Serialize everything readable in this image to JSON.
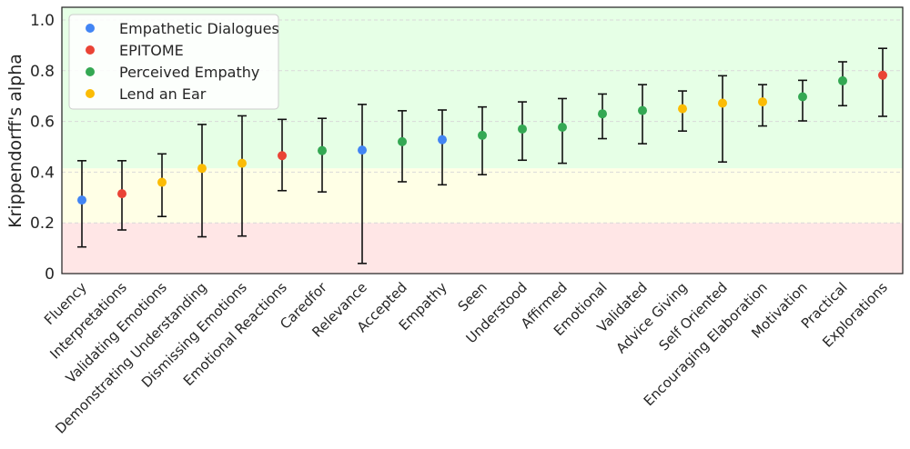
{
  "chart_data": {
    "type": "scatter",
    "title": "",
    "xlabel": "",
    "ylabel": "Krippendorff's alpha",
    "ylim": [
      0,
      1.05
    ],
    "yticks": [
      "0",
      "0.2",
      "0.4",
      "0.6",
      "0.8",
      "1.0"
    ],
    "ytick_values": [
      0,
      0.2,
      0.4,
      0.6,
      0.8,
      1.0
    ],
    "grid": true,
    "legend_position": "top-left",
    "bands": [
      {
        "from": 0.0,
        "to": 0.2,
        "color": "#ffe6e6"
      },
      {
        "from": 0.2,
        "to": 0.415,
        "color": "#ffffe6"
      },
      {
        "from": 0.415,
        "to": 1.05,
        "color": "#e6ffe6"
      }
    ],
    "datasets": [
      {
        "name": "Empathetic Dialogues",
        "color": "#4285f4"
      },
      {
        "name": "EPITOME",
        "color": "#ea4335"
      },
      {
        "name": "Perceived Empathy",
        "color": "#34a853"
      },
      {
        "name": "Lend an Ear",
        "color": "#fbbc05"
      }
    ],
    "points": [
      {
        "category": "Fluency",
        "dataset": "Empathetic Dialogues",
        "value": 0.29,
        "low": 0.105,
        "high": 0.445
      },
      {
        "category": "Interpretations",
        "dataset": "EPITOME",
        "value": 0.315,
        "low": 0.172,
        "high": 0.445
      },
      {
        "category": "Validating Emotions",
        "dataset": "Lend an Ear",
        "value": 0.36,
        "low": 0.225,
        "high": 0.472
      },
      {
        "category": "Demonstrating Understanding",
        "dataset": "Lend an Ear",
        "value": 0.415,
        "low": 0.145,
        "high": 0.588
      },
      {
        "category": "Dismissing Emotions",
        "dataset": "Lend an Ear",
        "value": 0.435,
        "low": 0.148,
        "high": 0.622
      },
      {
        "category": "Emotional Reactions",
        "dataset": "EPITOME",
        "value": 0.465,
        "low": 0.327,
        "high": 0.608
      },
      {
        "category": "Caredfor",
        "dataset": "Perceived Empathy",
        "value": 0.485,
        "low": 0.322,
        "high": 0.612
      },
      {
        "category": "Relevance",
        "dataset": "Empathetic Dialogues",
        "value": 0.487,
        "low": 0.04,
        "high": 0.667
      },
      {
        "category": "Accepted",
        "dataset": "Perceived Empathy",
        "value": 0.52,
        "low": 0.362,
        "high": 0.642
      },
      {
        "category": "Empathy",
        "dataset": "Empathetic Dialogues",
        "value": 0.528,
        "low": 0.35,
        "high": 0.645
      },
      {
        "category": "Seen",
        "dataset": "Perceived Empathy",
        "value": 0.545,
        "low": 0.39,
        "high": 0.657
      },
      {
        "category": "Understood",
        "dataset": "Perceived Empathy",
        "value": 0.57,
        "low": 0.447,
        "high": 0.677
      },
      {
        "category": "Affirmed",
        "dataset": "Perceived Empathy",
        "value": 0.577,
        "low": 0.435,
        "high": 0.69
      },
      {
        "category": "Emotional",
        "dataset": "Perceived Empathy",
        "value": 0.63,
        "low": 0.532,
        "high": 0.708
      },
      {
        "category": "Validated",
        "dataset": "Perceived Empathy",
        "value": 0.643,
        "low": 0.512,
        "high": 0.745
      },
      {
        "category": "Advice Giving",
        "dataset": "Lend an Ear",
        "value": 0.65,
        "low": 0.562,
        "high": 0.72
      },
      {
        "category": "Self Oriented",
        "dataset": "Lend an Ear",
        "value": 0.672,
        "low": 0.44,
        "high": 0.78
      },
      {
        "category": "Encouraging Elaboration",
        "dataset": "Lend an Ear",
        "value": 0.677,
        "low": 0.582,
        "high": 0.745
      },
      {
        "category": "Motivation",
        "dataset": "Perceived Empathy",
        "value": 0.697,
        "low": 0.602,
        "high": 0.762
      },
      {
        "category": "Practical",
        "dataset": "Perceived Empathy",
        "value": 0.76,
        "low": 0.662,
        "high": 0.835
      },
      {
        "category": "Explorations",
        "dataset": "EPITOME",
        "value": 0.782,
        "low": 0.62,
        "high": 0.888
      }
    ]
  }
}
